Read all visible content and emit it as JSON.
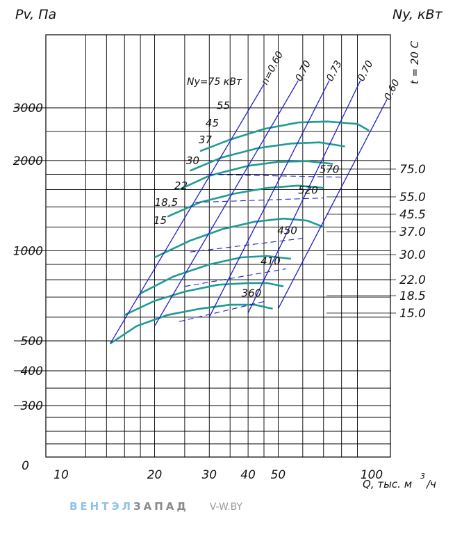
{
  "labels": {
    "pv_title": "Pv, Па",
    "ny_title": "Ny, кВт",
    "temperature": "t = 20 C",
    "q_unit_main": "Q, тыс. м",
    "q_unit_exp": "3",
    "q_unit_tail": "/ч",
    "ny_note": "Ny=75 кВт"
  },
  "brand": {
    "part1": "ВЕНТЭЛ",
    "part2": "ЗАПАД",
    "site": "V-W.BY"
  },
  "colors": {
    "grid": "#000000",
    "efficiency": "#1d1dcc",
    "pressure": "#1f9a95",
    "background": "#ffffff"
  },
  "chart_data": {
    "type": "line",
    "title": "",
    "xlabel": "Q, тыс. м3/ч",
    "ylabel": "Pv, Па",
    "y2label": "Ny, кВт",
    "x_scale": "log",
    "y_scale": "log",
    "x_ticks": [
      10,
      20,
      30,
      40,
      50,
      100
    ],
    "y_ticks": [
      0,
      300,
      400,
      500,
      1000,
      2000,
      3000
    ],
    "grid": true,
    "power_labels_right": [
      "75.0",
      "55.0",
      "45.5",
      "37.0",
      "30.0",
      "22.0",
      "18.5",
      "15.0"
    ],
    "pressure_curves": [
      {
        "power_kW": 15.0,
        "points": [
          [
            14.4,
            490
          ],
          [
            17.5,
            560
          ],
          [
            22,
            610
          ],
          [
            28,
            640
          ],
          [
            35,
            660
          ],
          [
            42,
            660
          ],
          [
            48,
            640
          ]
        ]
      },
      {
        "power_kW": 18.5,
        "points": [
          [
            16,
            610
          ],
          [
            20,
            680
          ],
          [
            25,
            730
          ],
          [
            32,
            770
          ],
          [
            40,
            780
          ],
          [
            46,
            780
          ],
          [
            52,
            760
          ]
        ]
      },
      {
        "power_kW": 22.0,
        "points": [
          [
            18,
            720
          ],
          [
            23,
            820
          ],
          [
            30,
            900
          ],
          [
            38,
            950
          ],
          [
            46,
            960
          ],
          [
            55,
            940
          ]
        ]
      },
      {
        "power_kW": 30.0,
        "points": [
          [
            20,
            950
          ],
          [
            26,
            1080
          ],
          [
            33,
            1180
          ],
          [
            42,
            1250
          ],
          [
            52,
            1280
          ],
          [
            62,
            1260
          ],
          [
            70,
            1200
          ]
        ]
      },
      {
        "power_kW": 37.0,
        "points": [
          [
            22,
            1300
          ],
          [
            28,
            1450
          ],
          [
            36,
            1550
          ],
          [
            46,
            1620
          ],
          [
            58,
            1650
          ],
          [
            70,
            1620
          ]
        ]
      },
      {
        "power_kW": 45.5,
        "points": [
          [
            24,
            1600
          ],
          [
            30,
            1780
          ],
          [
            40,
            1920
          ],
          [
            50,
            1980
          ],
          [
            62,
            1990
          ],
          [
            75,
            1950
          ]
        ]
      },
      {
        "power_kW": 55.0,
        "points": [
          [
            26,
            1850
          ],
          [
            33,
            2050
          ],
          [
            43,
            2200
          ],
          [
            55,
            2280
          ],
          [
            68,
            2300
          ],
          [
            82,
            2230
          ]
        ]
      },
      {
        "power_kW": 75.0,
        "points": [
          [
            28,
            2150
          ],
          [
            35,
            2350
          ],
          [
            45,
            2550
          ],
          [
            58,
            2680
          ],
          [
            72,
            2700
          ],
          [
            90,
            2650
          ],
          [
            98,
            2520
          ]
        ]
      }
    ],
    "speed_lines": [
      {
        "label": "360",
        "points": [
          [
            24,
            580
          ],
          [
            46,
            680
          ]
        ]
      },
      {
        "label": "410",
        "points": [
          [
            25,
            760
          ],
          [
            53,
            870
          ]
        ]
      },
      {
        "label": "450",
        "points": [
          [
            26,
            990
          ],
          [
            60,
            1100
          ]
        ]
      },
      {
        "label": "520",
        "points": [
          [
            27,
            1450
          ],
          [
            70,
            1500
          ]
        ]
      },
      {
        "label": "570",
        "points": [
          [
            28,
            1800
          ],
          [
            82,
            1760
          ]
        ]
      }
    ],
    "efficiency_lines": [
      {
        "label": "n=0.60",
        "points": [
          [
            14.4,
            490
          ],
          [
            45,
            3600
          ]
        ]
      },
      {
        "label": "0.70",
        "points": [
          [
            20,
            560
          ],
          [
            58,
            3700
          ]
        ]
      },
      {
        "label": "0.73",
        "points": [
          [
            30,
            600
          ],
          [
            73,
            3700
          ]
        ]
      },
      {
        "label": "0.70",
        "points": [
          [
            40,
            620
          ],
          [
            92,
            3700
          ]
        ]
      },
      {
        "label": "0.60",
        "points": [
          [
            50,
            640
          ],
          [
            112,
            3200
          ]
        ]
      }
    ],
    "power_tick_labels": [
      "55",
      "45",
      "37",
      "30",
      "22",
      "18,5",
      "15"
    ]
  }
}
